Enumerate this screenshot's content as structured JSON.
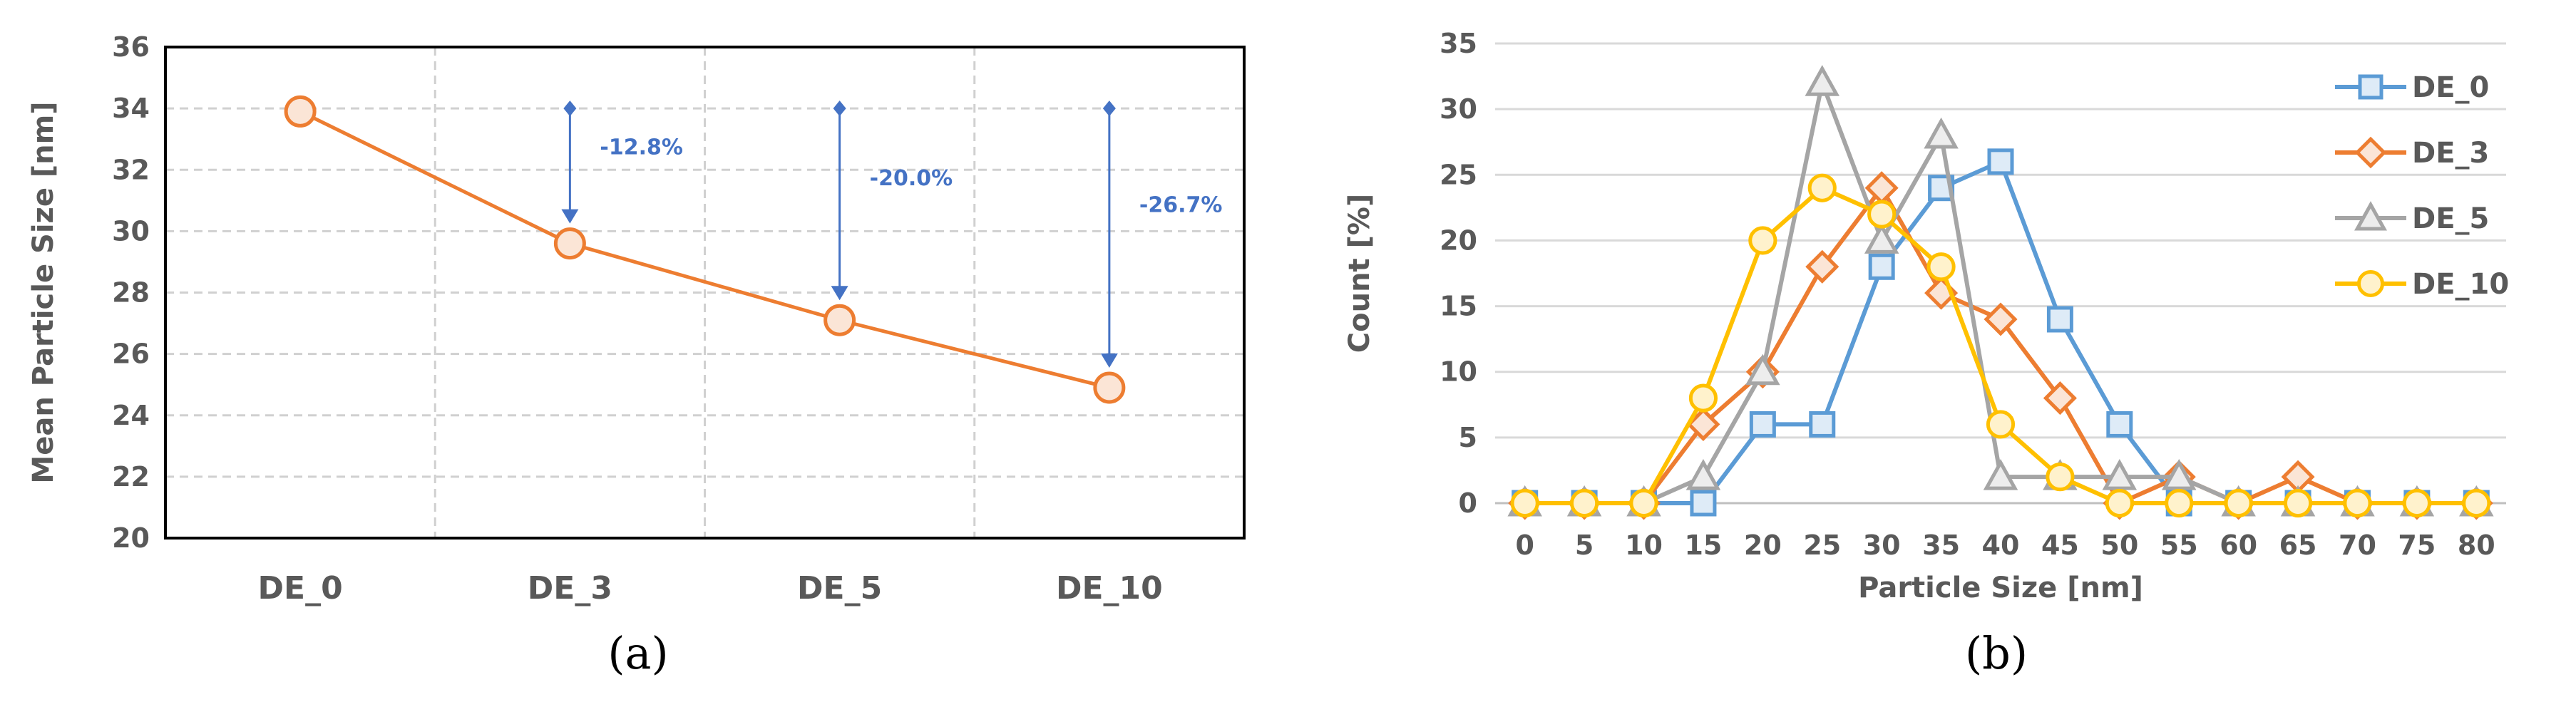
{
  "panels": {
    "a_caption": "(a)",
    "b_caption": "(b)"
  },
  "chart_data": [
    {
      "type": "line",
      "categories": [
        "DE_0",
        "DE_3",
        "DE_5",
        "DE_10"
      ],
      "values": [
        33.9,
        29.6,
        27.1,
        24.9
      ],
      "ylabel": "Mean Particle Size [nm]",
      "xlabel": "",
      "ylim": [
        20,
        36
      ],
      "yticks": [
        20,
        22,
        24,
        26,
        28,
        30,
        32,
        34,
        36
      ],
      "grid": "dashed",
      "line_color": "#ed7d31",
      "marker_fill": "#fbe5d6",
      "annotations": [
        {
          "category": "DE_3",
          "from": 34,
          "to": 29.6,
          "label": "-12.8%"
        },
        {
          "category": "DE_5",
          "from": 34,
          "to": 27.1,
          "label": "-20.0%"
        },
        {
          "category": "DE_10",
          "from": 34,
          "to": 24.9,
          "label": "-26.7%"
        }
      ],
      "annotation_color": "#4472c4"
    },
    {
      "type": "line",
      "x": [
        0,
        5,
        10,
        15,
        20,
        25,
        30,
        35,
        40,
        45,
        50,
        55,
        60,
        65,
        70,
        75,
        80
      ],
      "xlabel": "Particle Size [nm]",
      "ylabel": "Count  [%]",
      "ylim": [
        0,
        35
      ],
      "yticks": [
        0,
        5,
        10,
        15,
        20,
        25,
        30,
        35
      ],
      "grid": "solid",
      "legend_position": "top-right",
      "series": [
        {
          "name": "DE_0",
          "color": "#5b9bd5",
          "fill": "#deebf7",
          "marker": "square",
          "values": [
            0,
            0,
            0,
            0,
            6,
            6,
            18,
            24,
            26,
            14,
            6,
            0,
            0,
            0,
            0,
            0,
            0
          ]
        },
        {
          "name": "DE_3",
          "color": "#ed7d31",
          "fill": "#fbe5d6",
          "marker": "diamond",
          "values": [
            0,
            0,
            0,
            6,
            10,
            18,
            24,
            16,
            14,
            8,
            0,
            2,
            0,
            2,
            0,
            0,
            0
          ]
        },
        {
          "name": "DE_5",
          "color": "#a5a5a5",
          "fill": "#ededed",
          "marker": "triangle",
          "values": [
            0,
            0,
            0,
            2,
            10,
            32,
            20,
            28,
            2,
            2,
            2,
            2,
            0,
            0,
            0,
            0,
            0
          ]
        },
        {
          "name": "DE_10",
          "color": "#ffc000",
          "fill": "#fff2cc",
          "marker": "circle",
          "values": [
            0,
            0,
            0,
            8,
            20,
            24,
            22,
            18,
            6,
            2,
            0,
            0,
            0,
            0,
            0,
            0,
            0
          ]
        }
      ]
    }
  ]
}
